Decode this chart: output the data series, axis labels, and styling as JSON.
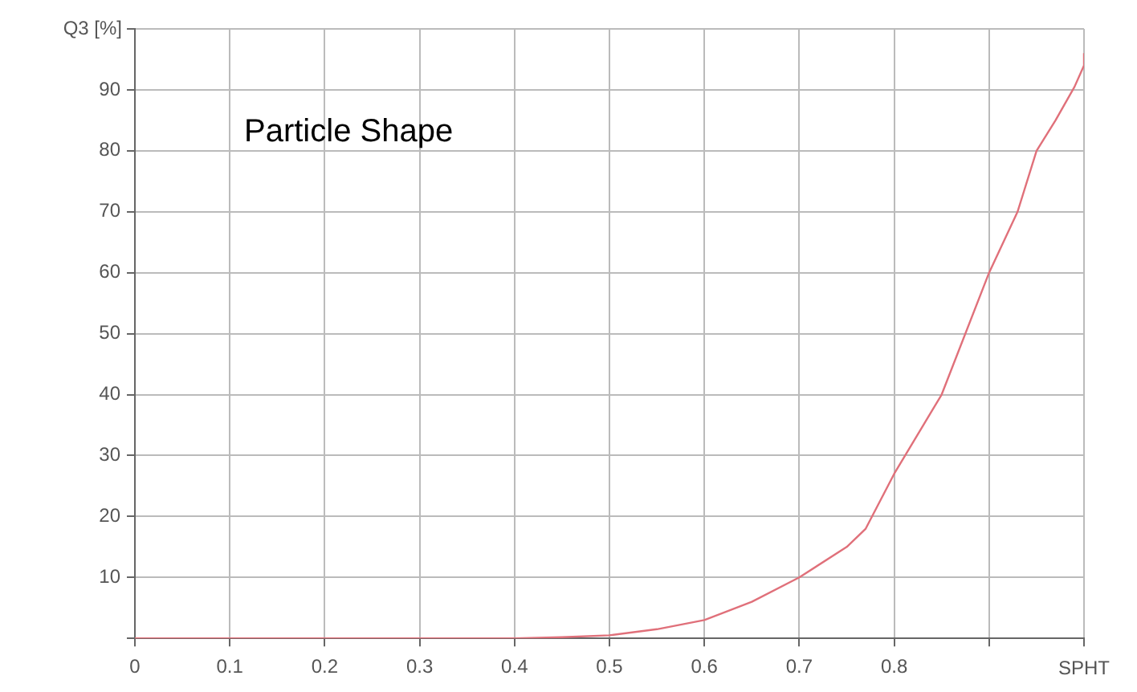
{
  "chart_data": {
    "type": "line",
    "title": "Particle Shape",
    "xlabel": "SPHT",
    "ylabel": "Q3 [%]",
    "x": [
      0,
      0.1,
      0.2,
      0.3,
      0.4,
      0.45,
      0.5,
      0.55,
      0.6,
      0.65,
      0.7,
      0.75,
      0.77,
      0.8,
      0.85,
      0.9,
      0.93,
      0.95,
      0.97,
      0.99,
      1.0,
      1.0
    ],
    "series": [
      {
        "color": "#e0707a",
        "values": [
          0,
          0,
          0,
          0,
          0,
          0.2,
          0.5,
          1.5,
          3,
          6,
          10,
          15,
          18,
          27,
          40,
          60,
          70,
          80,
          85,
          90.5,
          94,
          96
        ]
      }
    ],
    "xlim": [
      0,
      1
    ],
    "xticks": [
      0,
      0.1,
      0.2,
      0.3,
      0.4,
      0.5,
      0.6,
      0.7,
      0.8,
      {
        "value": 0.9,
        "label": null
      },
      {
        "value": 1,
        "label": null
      }
    ],
    "ylim": [
      0,
      100
    ],
    "yticks": [
      {
        "value": 0,
        "label": null
      },
      10,
      20,
      30,
      40,
      50,
      60,
      70,
      80,
      90,
      {
        "value": 100,
        "label": null
      }
    ],
    "grid": true,
    "legend": false,
    "marker": "none",
    "line_style": "solid"
  }
}
